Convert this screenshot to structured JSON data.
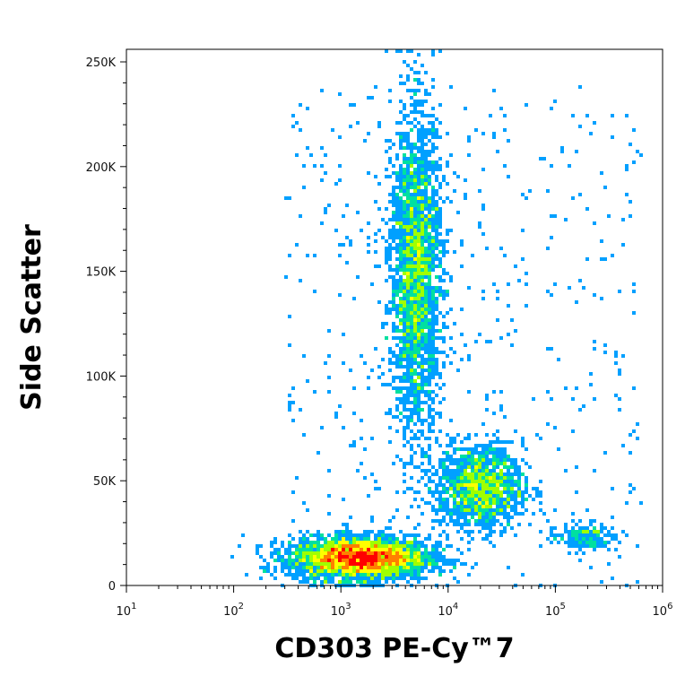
{
  "chart_data": {
    "type": "scatter",
    "subtype": "flow-cytometry-density-dot-plot",
    "xlabel": "CD303 PE-Cy™7",
    "ylabel": "Side Scatter",
    "x_scale": "log",
    "xlim": [
      10,
      1000000
    ],
    "ylim": [
      0,
      256000
    ],
    "x_ticks": [
      {
        "value": 10,
        "base": "10",
        "exp": "1"
      },
      {
        "value": 100,
        "base": "10",
        "exp": "2"
      },
      {
        "value": 1000,
        "base": "10",
        "exp": "3"
      },
      {
        "value": 10000,
        "base": "10",
        "exp": "4"
      },
      {
        "value": 100000,
        "base": "10",
        "exp": "5"
      },
      {
        "value": 1000000,
        "base": "10",
        "exp": "6"
      }
    ],
    "y_ticks": [
      {
        "value": 0,
        "label": "0"
      },
      {
        "value": 50000,
        "label": "50K"
      },
      {
        "value": 100000,
        "label": "100K"
      },
      {
        "value": 150000,
        "label": "150K"
      },
      {
        "value": 200000,
        "label": "200K"
      },
      {
        "value": 250000,
        "label": "250K"
      }
    ],
    "populations": [
      {
        "center_x": 1500,
        "center_y": 13000,
        "spread_log_x": 0.32,
        "spread_y": 5000,
        "density": "highest"
      },
      {
        "center_x": 5000,
        "center_y": 150000,
        "spread_log_x": 0.12,
        "spread_y": 38000,
        "density": "high"
      },
      {
        "center_x": 20000,
        "center_y": 47000,
        "spread_log_x": 0.2,
        "spread_y": 10000,
        "density": "medium"
      },
      {
        "center_x": 180000,
        "center_y": 23000,
        "spread_log_x": 0.15,
        "spread_y": 3500,
        "density": "low"
      }
    ],
    "colormap": [
      "#0000ff",
      "#00a0ff",
      "#00e0a0",
      "#a0ff00",
      "#ffff00",
      "#ff8000",
      "#ff0000"
    ],
    "grid": false,
    "legend": "none"
  }
}
